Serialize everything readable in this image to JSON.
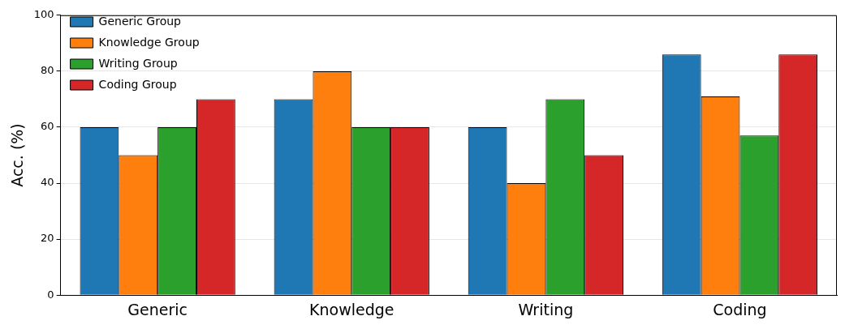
{
  "chart_data": {
    "type": "bar",
    "ylabel": "Acc. (%)",
    "categories": [
      "Generic",
      "Knowledge",
      "Writing",
      "Coding"
    ],
    "series": [
      {
        "name": "Generic Group",
        "color": "#1f77b4",
        "values": [
          60,
          70,
          60,
          86
        ]
      },
      {
        "name": "Knowledge Group",
        "color": "#ff7f0e",
        "values": [
          50,
          80,
          40,
          71
        ]
      },
      {
        "name": "Writing Group",
        "color": "#2ca02c",
        "values": [
          60,
          60,
          70,
          57
        ]
      },
      {
        "name": "Coding Group",
        "color": "#d62728",
        "values": [
          70,
          60,
          50,
          86
        ]
      }
    ],
    "ylim": [
      0,
      100
    ],
    "yticks": [
      0,
      20,
      40,
      60,
      80,
      100
    ],
    "grid": "y",
    "legend": "top left"
  }
}
